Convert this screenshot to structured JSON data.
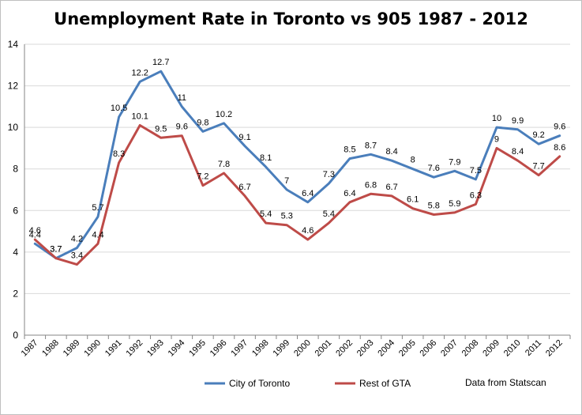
{
  "chart_data": {
    "type": "line",
    "title": "Unemployment Rate in Toronto vs 905 1987 - 2012",
    "xlabel": "",
    "ylabel": "",
    "ylim": [
      0,
      14
    ],
    "yticks": [
      0,
      2,
      4,
      6,
      8,
      10,
      12,
      14
    ],
    "grid": "horizontal",
    "legend_position": "bottom",
    "categories": [
      "1987",
      "1988",
      "1989",
      "1990",
      "1991",
      "1992",
      "1993",
      "1994",
      "1995",
      "1996",
      "1997",
      "1998",
      "1999",
      "2000",
      "2001",
      "2002",
      "2003",
      "2004",
      "2005",
      "2006",
      "2007",
      "2008",
      "2009",
      "2010",
      "2011",
      "2012"
    ],
    "series": [
      {
        "name": "City of Toronto",
        "color": "#4a7ebb",
        "values": [
          4.4,
          3.7,
          4.2,
          5.7,
          10.5,
          12.2,
          12.7,
          11,
          9.8,
          10.2,
          9.1,
          8.1,
          7,
          6.4,
          7.3,
          8.5,
          8.7,
          8.4,
          8,
          7.6,
          7.9,
          7.5,
          10,
          9.9,
          9.2,
          9.6
        ],
        "labels": [
          "4.4",
          "3.7",
          "4.2",
          "5.7",
          "10.5",
          "12.2",
          "12.7",
          "11",
          "9.8",
          "10.2",
          "9.1",
          "8.1",
          "7",
          "6.4",
          "7.3",
          "8.5",
          "8.7",
          "8.4",
          "8",
          "7.6",
          "7.9",
          "7.5",
          "10",
          "9.9",
          "9.2",
          "9.6"
        ]
      },
      {
        "name": "Rest of GTA",
        "color": "#be4b48",
        "values": [
          4.6,
          3.7,
          3.4,
          4.4,
          8.3,
          10.1,
          9.5,
          9.6,
          7.2,
          7.8,
          6.7,
          5.4,
          5.3,
          4.6,
          5.4,
          6.4,
          6.8,
          6.7,
          6.1,
          5.8,
          5.9,
          6.3,
          9,
          8.4,
          7.7,
          8.6
        ],
        "labels": [
          "4.6",
          "3.7",
          "3.4",
          "4.4",
          "8.3",
          "10.1",
          "9.5",
          "9.6",
          "7.2",
          "7.8",
          "6.7",
          "5.4",
          "5.3",
          "4.6",
          "5.4",
          "6.4",
          "6.8",
          "6.7",
          "6.1",
          "5.8",
          "5.9",
          "6.3",
          "9",
          "8.4",
          "7.7",
          "8.6"
        ]
      }
    ],
    "source_note": "Data from Statscan"
  }
}
